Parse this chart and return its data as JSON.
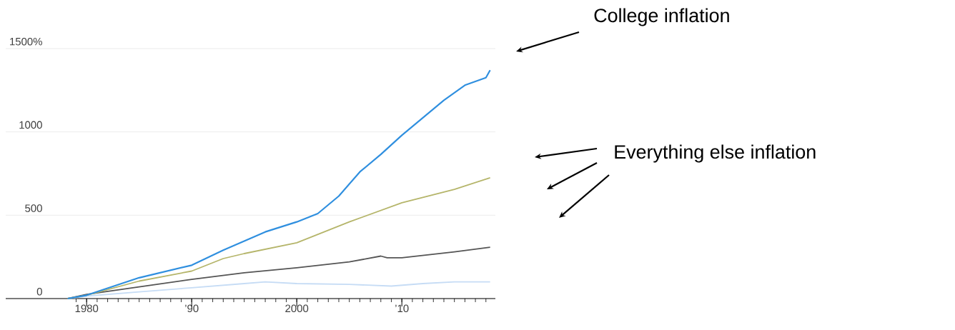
{
  "chart_data": {
    "type": "line",
    "xlim": [
      1972.3,
      2018.9
    ],
    "ylim": [
      0,
      1500
    ],
    "xticks": [
      {
        "value": 1979,
        "label": null
      },
      {
        "value": 1980,
        "label": "1980"
      },
      {
        "value": 1981,
        "label": null
      },
      {
        "value": 1982,
        "label": null
      },
      {
        "value": 1983,
        "label": null
      },
      {
        "value": 1984,
        "label": null
      },
      {
        "value": 1985,
        "label": null
      },
      {
        "value": 1986,
        "label": null
      },
      {
        "value": 1987,
        "label": null
      },
      {
        "value": 1988,
        "label": null
      },
      {
        "value": 1989,
        "label": null
      },
      {
        "value": 1990,
        "label": "’90"
      },
      {
        "value": 1991,
        "label": null
      },
      {
        "value": 1992,
        "label": null
      },
      {
        "value": 1993,
        "label": null
      },
      {
        "value": 1994,
        "label": null
      },
      {
        "value": 1995,
        "label": null
      },
      {
        "value": 1996,
        "label": null
      },
      {
        "value": 1997,
        "label": null
      },
      {
        "value": 1998,
        "label": null
      },
      {
        "value": 1999,
        "label": null
      },
      {
        "value": 2000,
        "label": "2000"
      },
      {
        "value": 2001,
        "label": null
      },
      {
        "value": 2002,
        "label": null
      },
      {
        "value": 2003,
        "label": null
      },
      {
        "value": 2004,
        "label": null
      },
      {
        "value": 2005,
        "label": null
      },
      {
        "value": 2006,
        "label": null
      },
      {
        "value": 2007,
        "label": null
      },
      {
        "value": 2008,
        "label": null
      },
      {
        "value": 2009,
        "label": null
      },
      {
        "value": 2010,
        "label": "’10"
      },
      {
        "value": 2011,
        "label": null
      },
      {
        "value": 2012,
        "label": null
      },
      {
        "value": 2013,
        "label": null
      },
      {
        "value": 2014,
        "label": null
      },
      {
        "value": 2015,
        "label": null
      },
      {
        "value": 2016,
        "label": null
      },
      {
        "value": 2017,
        "label": null
      },
      {
        "value": 2018,
        "label": null
      }
    ],
    "yticks": [
      0,
      500,
      1000,
      {
        "value": 1500,
        "label": "1500%"
      }
    ],
    "grid": "y",
    "annotations": [
      "College inflation",
      "Everything else inflation"
    ],
    "series": [
      {
        "color": "#c6dcf5",
        "x": [
          1978.2,
          1980,
          1985,
          1990,
          1995,
          1997,
          2000,
          2005,
          2009,
          2012,
          2015,
          2018.4
        ],
        "values": [
          0,
          15,
          40,
          65,
          90,
          100,
          90,
          85,
          75,
          90,
          100,
          100
        ]
      },
      {
        "color": "#555555",
        "x": [
          1978.2,
          1980,
          1985,
          1990,
          1995,
          2000,
          2005,
          2008,
          2008.6,
          2010,
          2015,
          2018.4
        ],
        "values": [
          0,
          25,
          70,
          115,
          155,
          185,
          220,
          255,
          245,
          245,
          280,
          308
        ]
      },
      {
        "color": "#b5b56a",
        "x": [
          1978.2,
          1980,
          1985,
          1990,
          1993,
          1995,
          2000,
          2005,
          2010,
          2015,
          2018.4
        ],
        "values": [
          0,
          20,
          105,
          165,
          240,
          270,
          335,
          460,
          575,
          655,
          725
        ]
      },
      {
        "color": "#2f8fdf",
        "x": [
          1978.2,
          1980,
          1985,
          1990,
          1993,
          1995,
          1997,
          2000,
          2002,
          2004,
          2006,
          2008,
          2010,
          2012,
          2014,
          2016,
          2018,
          2018.4
        ],
        "values": [
          0,
          20,
          125,
          200,
          290,
          345,
          400,
          460,
          510,
          615,
          760,
          865,
          980,
          1085,
          1190,
          1280,
          1325,
          1370
        ]
      }
    ]
  }
}
